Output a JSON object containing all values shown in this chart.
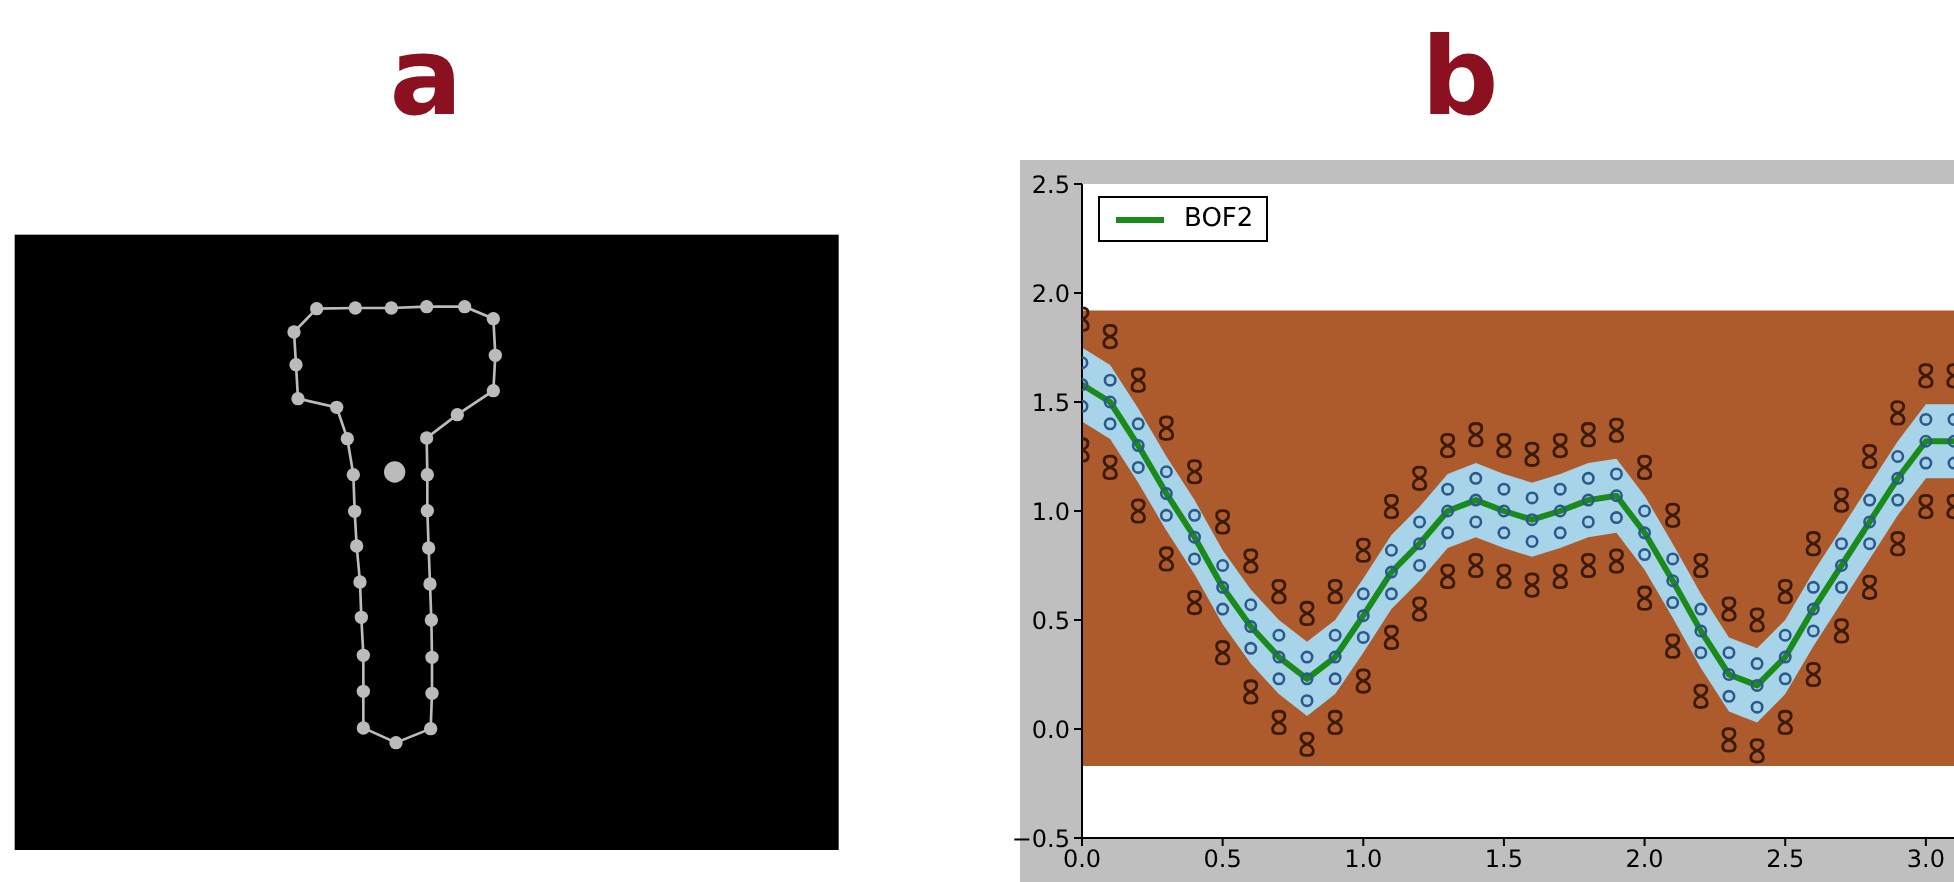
{
  "chart_data": [
    {
      "type": "other",
      "title": "a"
    },
    {
      "type": "line",
      "title": "b",
      "x": [
        0,
        0.1,
        0.2,
        0.3,
        0.4,
        0.5,
        0.6,
        0.7,
        0.8,
        0.9,
        1.0,
        1.1,
        1.2,
        1.3,
        1.4,
        1.5,
        1.6,
        1.7,
        1.8,
        1.9,
        2.0,
        2.1,
        2.2,
        2.3,
        2.4,
        2.5,
        2.6,
        2.7,
        2.8,
        2.9,
        3.0,
        3.1
      ],
      "series": [
        {
          "type": "scatter",
          "color": "#3b1a0a",
          "values": [
            1.88,
            1.8,
            1.6,
            1.38,
            1.18,
            0.95,
            0.77,
            0.63,
            0.53,
            0.63,
            0.82,
            1.02,
            1.15,
            1.3,
            1.35,
            1.3,
            1.26,
            1.3,
            1.35,
            1.37,
            1.2,
            0.98,
            0.75,
            0.55,
            0.5,
            0.63,
            0.85,
            1.05,
            1.25,
            1.45,
            1.62,
            1.62
          ]
        },
        {
          "type": "scatter",
          "color": "#3b1a0a",
          "values": [
            1.28,
            1.2,
            1.0,
            0.78,
            0.58,
            0.35,
            0.17,
            0.03,
            -0.07,
            0.03,
            0.22,
            0.42,
            0.55,
            0.7,
            0.75,
            0.7,
            0.66,
            0.7,
            0.75,
            0.77,
            0.6,
            0.38,
            0.15,
            -0.05,
            -0.1,
            0.03,
            0.25,
            0.45,
            0.65,
            0.85,
            1.02,
            1.02
          ]
        },
        {
          "type": "line",
          "name": "BOF2",
          "color": "#1a8a1a",
          "marker": "none",
          "lower": [
            1.41,
            1.33,
            1.13,
            0.91,
            0.71,
            0.48,
            0.3,
            0.16,
            0.06,
            0.16,
            0.35,
            0.55,
            0.68,
            0.83,
            0.88,
            0.83,
            0.79,
            0.83,
            0.88,
            0.9,
            0.73,
            0.51,
            0.28,
            0.08,
            0.03,
            0.16,
            0.38,
            0.58,
            0.78,
            0.98,
            1.15,
            1.15
          ],
          "upper": [
            1.75,
            1.67,
            1.47,
            1.25,
            1.05,
            0.82,
            0.64,
            0.5,
            0.4,
            0.5,
            0.69,
            0.89,
            1.02,
            1.17,
            1.22,
            1.17,
            1.13,
            1.17,
            1.22,
            1.24,
            1.07,
            0.85,
            0.62,
            0.42,
            0.37,
            0.5,
            0.72,
            0.92,
            1.12,
            1.32,
            1.49,
            1.49
          ],
          "values": [
            1.58,
            1.5,
            1.3,
            1.08,
            0.88,
            0.65,
            0.47,
            0.33,
            0.23,
            0.33,
            0.52,
            0.72,
            0.85,
            1.0,
            1.05,
            1.0,
            0.96,
            1.0,
            1.05,
            1.07,
            0.9,
            0.68,
            0.45,
            0.25,
            0.2,
            0.33,
            0.55,
            0.75,
            0.95,
            1.15,
            1.32,
            1.32
          ]
        },
        {
          "type": "scatter",
          "marker": "circle",
          "color": "#2b5a8a",
          "values": [
            1.68,
            1.6,
            1.4,
            1.18,
            0.98,
            0.75,
            0.57,
            0.43,
            0.33,
            0.43,
            0.62,
            0.82,
            0.95,
            1.1,
            1.15,
            1.1,
            1.06,
            1.1,
            1.15,
            1.17,
            1.0,
            0.78,
            0.55,
            0.35,
            0.3,
            0.43,
            0.65,
            0.85,
            1.05,
            1.25,
            1.42,
            1.42
          ]
        },
        {
          "type": "scatter",
          "marker": "circle",
          "color": "#2b5a8a",
          "values": [
            1.58,
            1.5,
            1.3,
            1.08,
            0.88,
            0.65,
            0.47,
            0.33,
            0.23,
            0.33,
            0.52,
            0.72,
            0.85,
            1.0,
            1.05,
            1.0,
            0.96,
            1.0,
            1.05,
            1.07,
            0.9,
            0.68,
            0.45,
            0.25,
            0.2,
            0.33,
            0.55,
            0.75,
            0.95,
            1.15,
            1.32,
            1.32
          ]
        },
        {
          "type": "scatter",
          "marker": "circle",
          "color": "#2b5a8a",
          "values": [
            1.48,
            1.4,
            1.2,
            0.98,
            0.78,
            0.55,
            0.37,
            0.23,
            0.13,
            0.23,
            0.42,
            0.62,
            0.75,
            0.9,
            0.95,
            0.9,
            0.86,
            0.9,
            0.95,
            0.97,
            0.8,
            0.58,
            0.35,
            0.15,
            0.1,
            0.23,
            0.45,
            0.65,
            0.85,
            1.05,
            1.22,
            1.22
          ]
        }
      ],
      "bands": [
        {
          "axis": "y",
          "from": -0.17,
          "to": 1.92,
          "color": "#ad5a2c"
        }
      ],
      "xlim": [
        0,
        3.1
      ],
      "xticks": [
        {
          "value": 0,
          "label": "0.0"
        },
        0.5,
        {
          "value": 1,
          "label": "1.0"
        },
        1.5,
        {
          "value": 2,
          "label": "2.0"
        },
        2.5,
        {
          "value": 3,
          "label": "3.0"
        }
      ],
      "ylim": [
        -0.5,
        2.5
      ],
      "yticks": [
        {
          "value": -0.5,
          "label": "−0.5"
        },
        {
          "value": 0,
          "label": "0.0"
        },
        0.5,
        {
          "value": 1,
          "label": "1.0"
        },
        1.5,
        {
          "value": 2,
          "label": "2.0"
        },
        2.5
      ],
      "legend": "top left"
    }
  ]
}
